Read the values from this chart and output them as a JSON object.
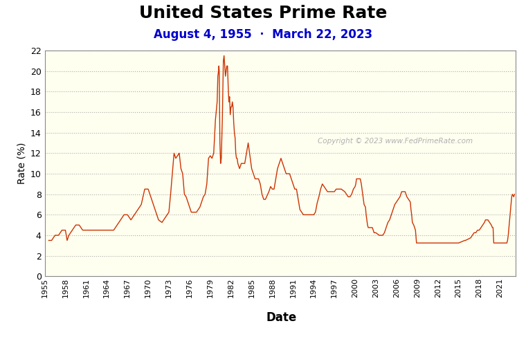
{
  "title": "United States Prime Rate",
  "subtitle": "August 4, 1955  ·  March 22, 2023",
  "xlabel": "Date",
  "ylabel": "Rate (%)",
  "copyright_text": "Copyright © 2023 www.FedPrimeRate.com",
  "title_fontsize": 18,
  "subtitle_fontsize": 12,
  "subtitle_color": "#0000cc",
  "line_color": "#cc3300",
  "plot_bg_color": "#fffff0",
  "fig_bg_color": "#ffffff",
  "ylim": [
    0,
    22
  ],
  "yticks": [
    0,
    2,
    4,
    6,
    8,
    10,
    12,
    14,
    16,
    18,
    20,
    22
  ],
  "grid_color": "#aaaaaa",
  "xtick_labels": [
    "1955",
    "1958",
    "1961",
    "1964",
    "1967",
    "1970",
    "1973",
    "1976",
    "1979",
    "1982",
    "1985",
    "1988",
    "1991",
    "1994",
    "1997",
    "2000",
    "2003",
    "2006",
    "2009",
    "2012",
    "2015",
    "2018",
    "2021"
  ],
  "xlim_start": 1955,
  "xlim_end": 2023.25,
  "data": [
    [
      1955.58,
      3.5
    ],
    [
      1955.75,
      3.5
    ],
    [
      1956.0,
      3.5
    ],
    [
      1956.5,
      4.0
    ],
    [
      1957.0,
      4.0
    ],
    [
      1957.5,
      4.5
    ],
    [
      1958.0,
      4.5
    ],
    [
      1958.25,
      3.5
    ],
    [
      1958.5,
      4.0
    ],
    [
      1959.0,
      4.5
    ],
    [
      1959.5,
      5.0
    ],
    [
      1960.0,
      5.0
    ],
    [
      1960.5,
      4.5
    ],
    [
      1961.0,
      4.5
    ],
    [
      1962.0,
      4.5
    ],
    [
      1963.0,
      4.5
    ],
    [
      1964.0,
      4.5
    ],
    [
      1965.0,
      4.5
    ],
    [
      1965.5,
      5.0
    ],
    [
      1966.0,
      5.5
    ],
    [
      1966.5,
      6.0
    ],
    [
      1967.0,
      6.0
    ],
    [
      1967.5,
      5.5
    ],
    [
      1968.0,
      6.0
    ],
    [
      1968.5,
      6.5
    ],
    [
      1969.0,
      7.0
    ],
    [
      1969.5,
      8.5
    ],
    [
      1970.0,
      8.5
    ],
    [
      1970.5,
      7.5
    ],
    [
      1971.0,
      6.5
    ],
    [
      1971.5,
      5.5
    ],
    [
      1972.0,
      5.25
    ],
    [
      1972.5,
      5.75
    ],
    [
      1973.0,
      6.25
    ],
    [
      1973.25,
      8.0
    ],
    [
      1973.5,
      10.0
    ],
    [
      1973.75,
      12.0
    ],
    [
      1974.0,
      11.5
    ],
    [
      1974.5,
      12.0
    ],
    [
      1974.75,
      10.5
    ],
    [
      1975.0,
      10.0
    ],
    [
      1975.25,
      8.0
    ],
    [
      1975.5,
      7.75
    ],
    [
      1975.75,
      7.25
    ],
    [
      1976.0,
      6.75
    ],
    [
      1976.25,
      6.25
    ],
    [
      1976.5,
      6.25
    ],
    [
      1976.75,
      6.25
    ],
    [
      1977.0,
      6.25
    ],
    [
      1977.25,
      6.5
    ],
    [
      1977.5,
      6.75
    ],
    [
      1977.75,
      7.25
    ],
    [
      1978.0,
      7.75
    ],
    [
      1978.25,
      8.0
    ],
    [
      1978.5,
      9.0
    ],
    [
      1978.75,
      11.5
    ],
    [
      1979.0,
      11.75
    ],
    [
      1979.25,
      11.5
    ],
    [
      1979.5,
      12.0
    ],
    [
      1979.75,
      15.25
    ],
    [
      1980.0,
      17.0
    ],
    [
      1980.1,
      19.5
    ],
    [
      1980.2,
      20.0
    ],
    [
      1980.25,
      20.5
    ],
    [
      1980.3,
      20.0
    ],
    [
      1980.4,
      13.0
    ],
    [
      1980.5,
      11.0
    ],
    [
      1980.6,
      11.5
    ],
    [
      1980.75,
      15.25
    ],
    [
      1980.9,
      21.0
    ],
    [
      1981.0,
      21.5
    ],
    [
      1981.1,
      20.5
    ],
    [
      1981.2,
      19.5
    ],
    [
      1981.3,
      20.0
    ],
    [
      1981.4,
      20.5
    ],
    [
      1981.5,
      20.5
    ],
    [
      1981.6,
      18.5
    ],
    [
      1981.7,
      17.0
    ],
    [
      1981.8,
      17.5
    ],
    [
      1981.9,
      15.75
    ],
    [
      1982.0,
      16.5
    ],
    [
      1982.1,
      16.5
    ],
    [
      1982.2,
      17.0
    ],
    [
      1982.3,
      16.5
    ],
    [
      1982.4,
      15.0
    ],
    [
      1982.5,
      14.0
    ],
    [
      1982.6,
      13.5
    ],
    [
      1982.7,
      12.0
    ],
    [
      1982.8,
      11.5
    ],
    [
      1982.9,
      11.5
    ],
    [
      1983.0,
      11.0
    ],
    [
      1983.25,
      10.5
    ],
    [
      1983.5,
      11.0
    ],
    [
      1984.0,
      11.0
    ],
    [
      1984.25,
      12.0
    ],
    [
      1984.5,
      13.0
    ],
    [
      1984.75,
      11.75
    ],
    [
      1985.0,
      10.5
    ],
    [
      1985.25,
      10.0
    ],
    [
      1985.5,
      9.5
    ],
    [
      1985.75,
      9.5
    ],
    [
      1986.0,
      9.5
    ],
    [
      1986.25,
      9.0
    ],
    [
      1986.5,
      8.0
    ],
    [
      1986.75,
      7.5
    ],
    [
      1987.0,
      7.5
    ],
    [
      1987.5,
      8.25
    ],
    [
      1987.75,
      8.75
    ],
    [
      1988.0,
      8.5
    ],
    [
      1988.25,
      8.5
    ],
    [
      1988.5,
      9.5
    ],
    [
      1988.75,
      10.5
    ],
    [
      1989.0,
      11.0
    ],
    [
      1989.25,
      11.5
    ],
    [
      1989.5,
      11.0
    ],
    [
      1989.75,
      10.5
    ],
    [
      1990.0,
      10.0
    ],
    [
      1990.5,
      10.0
    ],
    [
      1990.75,
      9.5
    ],
    [
      1991.0,
      9.0
    ],
    [
      1991.25,
      8.5
    ],
    [
      1991.5,
      8.5
    ],
    [
      1991.75,
      7.5
    ],
    [
      1992.0,
      6.5
    ],
    [
      1992.5,
      6.0
    ],
    [
      1992.75,
      6.0
    ],
    [
      1993.0,
      6.0
    ],
    [
      1993.5,
      6.0
    ],
    [
      1994.0,
      6.0
    ],
    [
      1994.25,
      6.25
    ],
    [
      1994.5,
      7.15
    ],
    [
      1994.75,
      7.75
    ],
    [
      1995.0,
      8.5
    ],
    [
      1995.25,
      9.0
    ],
    [
      1995.5,
      8.75
    ],
    [
      1995.75,
      8.5
    ],
    [
      1996.0,
      8.25
    ],
    [
      1996.5,
      8.25
    ],
    [
      1997.0,
      8.25
    ],
    [
      1997.25,
      8.5
    ],
    [
      1998.0,
      8.5
    ],
    [
      1998.5,
      8.25
    ],
    [
      1998.75,
      8.0
    ],
    [
      1999.0,
      7.75
    ],
    [
      1999.25,
      7.75
    ],
    [
      1999.5,
      8.0
    ],
    [
      1999.75,
      8.5
    ],
    [
      2000.0,
      8.75
    ],
    [
      2000.1,
      9.0
    ],
    [
      2000.2,
      9.5
    ],
    [
      2000.3,
      9.5
    ],
    [
      2000.75,
      9.5
    ],
    [
      2000.9,
      9.0
    ],
    [
      2001.0,
      8.5
    ],
    [
      2001.1,
      8.0
    ],
    [
      2001.2,
      7.5
    ],
    [
      2001.3,
      7.0
    ],
    [
      2001.5,
      6.75
    ],
    [
      2001.6,
      6.0
    ],
    [
      2001.7,
      5.5
    ],
    [
      2001.8,
      5.0
    ],
    [
      2001.9,
      4.75
    ],
    [
      2002.0,
      4.75
    ],
    [
      2002.5,
      4.75
    ],
    [
      2002.75,
      4.25
    ],
    [
      2003.0,
      4.25
    ],
    [
      2003.5,
      4.0
    ],
    [
      2004.0,
      4.0
    ],
    [
      2004.25,
      4.25
    ],
    [
      2004.5,
      4.75
    ],
    [
      2004.75,
      5.25
    ],
    [
      2005.0,
      5.5
    ],
    [
      2005.25,
      6.0
    ],
    [
      2005.5,
      6.5
    ],
    [
      2005.75,
      7.0
    ],
    [
      2006.0,
      7.25
    ],
    [
      2006.25,
      7.5
    ],
    [
      2006.5,
      7.75
    ],
    [
      2006.75,
      8.25
    ],
    [
      2007.0,
      8.25
    ],
    [
      2007.25,
      8.25
    ],
    [
      2007.5,
      7.75
    ],
    [
      2007.75,
      7.5
    ],
    [
      2008.0,
      7.25
    ],
    [
      2008.1,
      6.5
    ],
    [
      2008.2,
      6.0
    ],
    [
      2008.3,
      5.25
    ],
    [
      2008.5,
      5.0
    ],
    [
      2008.75,
      4.5
    ],
    [
      2008.9,
      3.25
    ],
    [
      2009.0,
      3.25
    ],
    [
      2010.0,
      3.25
    ],
    [
      2011.0,
      3.25
    ],
    [
      2012.0,
      3.25
    ],
    [
      2013.0,
      3.25
    ],
    [
      2014.0,
      3.25
    ],
    [
      2015.0,
      3.25
    ],
    [
      2015.9,
      3.5
    ],
    [
      2016.0,
      3.5
    ],
    [
      2016.75,
      3.75
    ],
    [
      2017.0,
      4.0
    ],
    [
      2017.25,
      4.25
    ],
    [
      2017.5,
      4.25
    ],
    [
      2017.75,
      4.5
    ],
    [
      2018.0,
      4.5
    ],
    [
      2018.25,
      4.75
    ],
    [
      2018.5,
      5.0
    ],
    [
      2018.75,
      5.25
    ],
    [
      2018.9,
      5.5
    ],
    [
      2019.0,
      5.5
    ],
    [
      2019.25,
      5.5
    ],
    [
      2019.5,
      5.25
    ],
    [
      2019.75,
      5.0
    ],
    [
      2019.9,
      4.75
    ],
    [
      2020.0,
      4.75
    ],
    [
      2020.1,
      3.25
    ],
    [
      2020.2,
      3.25
    ],
    [
      2020.5,
      3.25
    ],
    [
      2021.0,
      3.25
    ],
    [
      2021.5,
      3.25
    ],
    [
      2022.0,
      3.25
    ],
    [
      2022.1,
      3.5
    ],
    [
      2022.2,
      4.0
    ],
    [
      2022.3,
      4.75
    ],
    [
      2022.4,
      5.5
    ],
    [
      2022.5,
      6.25
    ],
    [
      2022.6,
      7.0
    ],
    [
      2022.7,
      7.75
    ],
    [
      2022.8,
      8.0
    ],
    [
      2023.0,
      7.75
    ],
    [
      2023.1,
      8.0
    ]
  ]
}
